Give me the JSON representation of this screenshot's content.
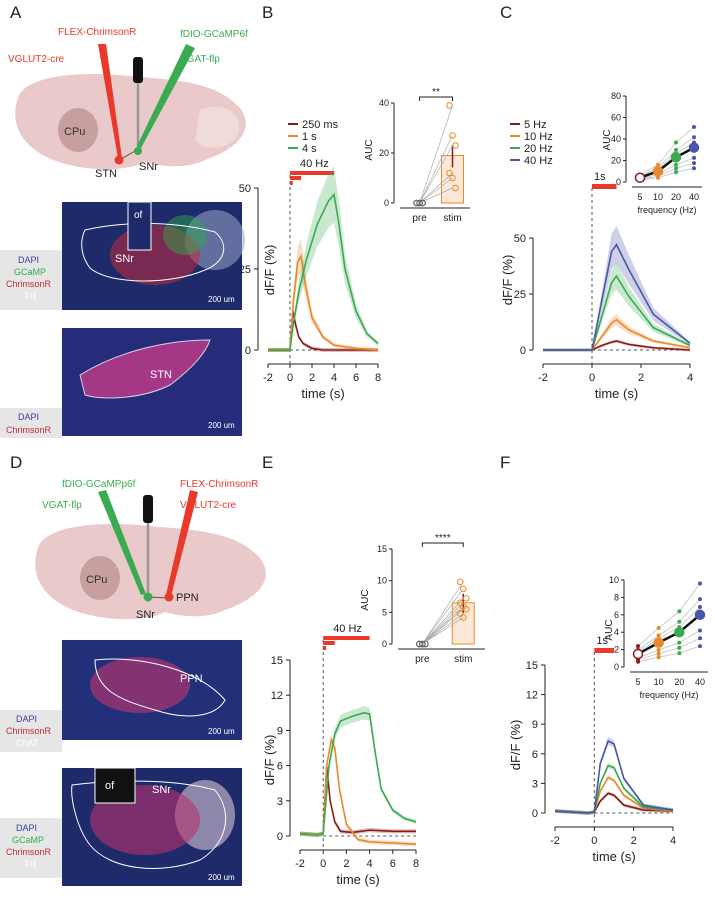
{
  "panel_labels": {
    "A": "A",
    "B": "B",
    "C": "C",
    "D": "D",
    "E": "E",
    "F": "F"
  },
  "colors": {
    "brain": "#e9c9c9",
    "striatum": "#c79f9f",
    "red": "#e8392a",
    "green": "#3bab52",
    "dark_red": "#8b1a1a",
    "orange": "#e8892b",
    "blue": "#4a57a8",
    "black": "#111111",
    "dapi": "#3b3fa0",
    "gcamp": "#2fb04a",
    "chrimson": "#c22a3a",
    "th_chat": "#bdbdbd"
  },
  "panel_a": {
    "vector_left": "FLEX-ChrimsonR",
    "cre_line": "VGLUT2-cre",
    "vector_right": "fDIO-GCaMP6f",
    "flp_line": "VGAT-flp",
    "region_striatum": "CPu",
    "region_stn": "STN",
    "region_snr": "SNr",
    "hist1": {
      "fiber": "of",
      "region": "SNr",
      "scale": "200 um",
      "legend": [
        "DAPI",
        "GCaMP",
        "ChrimsonR",
        "TH"
      ]
    },
    "hist2": {
      "region": "STN",
      "scale": "200 um",
      "legend": [
        "DAPI",
        "ChrimsonR"
      ]
    }
  },
  "panel_d": {
    "vector_left": "fDIO-GCaMPp6f",
    "flp_line": "VGAT-flp",
    "vector_right": "FLEX-ChrimsonR",
    "cre_line": "VGLUT2-cre",
    "region_striatum": "CPu",
    "region_ppn": "PPN",
    "region_snr": "SNr",
    "hist1": {
      "region": "PPN",
      "scale": "200 um",
      "legend": [
        "DAPI",
        "ChrimsonR",
        "ChAT"
      ]
    },
    "hist2": {
      "fiber": "of",
      "region": "SNr",
      "scale": "200 um",
      "legend": [
        "DAPI",
        "GCaMP",
        "ChrimsonR",
        "TH"
      ]
    }
  },
  "chart_data": [
    {
      "id": "B",
      "type": "line",
      "xlabel": "time (s)",
      "ylabel": "dF/F (%)",
      "xlim": [
        -2,
        8
      ],
      "ylim": [
        0,
        50
      ],
      "xticks": [
        "-2",
        "0",
        "2",
        "4",
        "6",
        "8"
      ],
      "yticks": [
        "0",
        "25",
        "50"
      ],
      "stim_label": "40 Hz",
      "legend": [
        "250 ms",
        "1 s",
        "4 s"
      ],
      "series": [
        {
          "name": "250 ms",
          "color": "#8b1a1a",
          "x": [
            -2,
            -0.5,
            0,
            0.25,
            0.5,
            0.8,
            1.2,
            2,
            3,
            5,
            8
          ],
          "y": [
            0,
            0,
            0,
            12,
            8,
            4,
            2,
            0.5,
            0,
            0,
            0
          ]
        },
        {
          "name": "1 s",
          "color": "#e8892b",
          "x": [
            -2,
            -0.5,
            0,
            0.3,
            0.7,
            1,
            1.4,
            2,
            3,
            4,
            6,
            8
          ],
          "y": [
            0,
            0,
            0,
            15,
            27,
            29,
            20,
            10,
            4,
            1.5,
            0.5,
            0
          ]
        },
        {
          "name": "4 s",
          "color": "#3bab52",
          "x": [
            -2,
            -0.5,
            0,
            0.3,
            0.8,
            1.5,
            2.5,
            3.5,
            4,
            4.4,
            5,
            6,
            7,
            8
          ],
          "y": [
            0,
            0,
            0,
            8,
            18,
            28,
            39,
            46,
            48,
            40,
            25,
            12,
            5,
            2
          ]
        }
      ],
      "inset": {
        "type": "bar",
        "ylabel": "AUC",
        "categories": [
          "pre",
          "stim"
        ],
        "values": [
          0,
          19
        ],
        "ylim": [
          0,
          40
        ],
        "yticks": [
          "0",
          "20",
          "40"
        ],
        "significance": "**",
        "pre_points": [
          0,
          0,
          0,
          0,
          0,
          0
        ],
        "stim_points": [
          39,
          27,
          23,
          12,
          10,
          6
        ]
      }
    },
    {
      "id": "C",
      "type": "line",
      "xlabel": "time (s)",
      "ylabel": "dF/F (%)",
      "xlim": [
        -2,
        4
      ],
      "ylim": [
        0,
        50
      ],
      "xticks": [
        "-2",
        "0",
        "2",
        "4"
      ],
      "yticks": [
        "0",
        "25",
        "50"
      ],
      "stim_label": "1s",
      "legend": [
        "5 Hz",
        "10 Hz",
        "20 Hz",
        "40 Hz"
      ],
      "series": [
        {
          "name": "5 Hz",
          "color": "#8b1a1a",
          "x": [
            -2,
            -0.3,
            0,
            0.4,
            0.8,
            1,
            1.5,
            2.5,
            4
          ],
          "y": [
            0,
            0,
            0,
            2,
            3.5,
            4,
            2.5,
            1,
            0
          ]
        },
        {
          "name": "10 Hz",
          "color": "#e8892b",
          "x": [
            -2,
            -0.3,
            0,
            0.4,
            0.8,
            1,
            1.5,
            2.5,
            4
          ],
          "y": [
            0,
            0,
            0,
            6,
            12,
            13.5,
            9,
            4,
            1
          ]
        },
        {
          "name": "20 Hz",
          "color": "#3bab52",
          "x": [
            -2,
            -0.3,
            0,
            0.4,
            0.8,
            1,
            1.5,
            2.5,
            4
          ],
          "y": [
            0,
            0,
            0,
            15,
            30,
            33,
            24,
            10,
            2
          ]
        },
        {
          "name": "40 Hz",
          "color": "#4a57a8",
          "x": [
            -2,
            -0.3,
            0,
            0.4,
            0.8,
            1,
            1.5,
            2.5,
            4
          ],
          "y": [
            0,
            0,
            0,
            22,
            44,
            47,
            36,
            16,
            3
          ]
        }
      ],
      "inset": {
        "type": "scatter",
        "ylabel": "AUC",
        "xlabel": "frequency (Hz)",
        "categories": [
          "5",
          "10",
          "20",
          "40"
        ],
        "ylim": [
          0,
          80
        ],
        "yticks": [
          "0",
          "20",
          "40",
          "60",
          "80"
        ],
        "means": [
          4,
          10,
          23,
          32
        ]
      }
    },
    {
      "id": "E",
      "type": "line",
      "xlabel": "time (s)",
      "ylabel": "dF/F (%)",
      "xlim": [
        -2,
        8
      ],
      "ylim": [
        0,
        15
      ],
      "xticks": [
        "-2",
        "0",
        "2",
        "4",
        "6",
        "8"
      ],
      "yticks": [
        "0",
        "3",
        "6",
        "9",
        "12",
        "15"
      ],
      "stim_label": "40 Hz",
      "series": [
        {
          "name": "250 ms",
          "color": "#8b1a1a",
          "x": [
            -2,
            -0.5,
            0,
            0.3,
            0.6,
            1,
            1.5,
            2.5,
            4,
            6,
            8
          ],
          "y": [
            0.2,
            0.1,
            0.2,
            6,
            3,
            1.2,
            0.4,
            0.3,
            0.5,
            0.4,
            0.4
          ]
        },
        {
          "name": "1 s",
          "color": "#e8892b",
          "x": [
            -2,
            -0.5,
            0,
            0.3,
            0.7,
            1,
            1.4,
            2,
            3,
            4,
            6,
            8
          ],
          "y": [
            0.2,
            0.1,
            0.2,
            6,
            8.2,
            7.5,
            4,
            1,
            -0.3,
            -0.5,
            -0.6,
            -0.7
          ]
        },
        {
          "name": "4 s",
          "color": "#3bab52",
          "x": [
            -2,
            -0.5,
            0,
            0.5,
            1,
            1.5,
            2.5,
            3.5,
            4,
            4.5,
            5,
            6,
            7,
            8
          ],
          "y": [
            0.2,
            0.1,
            0.2,
            6,
            8.7,
            9.8,
            10.2,
            10.5,
            10.4,
            7,
            4,
            2.2,
            1.5,
            1.2
          ]
        }
      ],
      "inset": {
        "type": "bar",
        "ylabel": "AUC",
        "categories": [
          "pre",
          "stim"
        ],
        "values": [
          0,
          6.5
        ],
        "ylim": [
          0,
          15
        ],
        "yticks": [
          "0",
          "5",
          "10",
          "15"
        ],
        "significance": "****",
        "pre_points": [
          0,
          0,
          0,
          0,
          0,
          0,
          0,
          0
        ],
        "stim_points": [
          9.8,
          8.7,
          7.2,
          6.5,
          5.9,
          5.5,
          4.8,
          4.2
        ]
      }
    },
    {
      "id": "F",
      "type": "line",
      "xlabel": "time (s)",
      "ylabel": "dF/F (%)",
      "xlim": [
        -2,
        4
      ],
      "ylim": [
        0,
        15
      ],
      "xticks": [
        "-2",
        "0",
        "2",
        "4"
      ],
      "yticks": [
        "0",
        "3",
        "6",
        "9",
        "12",
        "15"
      ],
      "stim_label": "1s",
      "series": [
        {
          "name": "5 Hz",
          "color": "#8b1a1a",
          "x": [
            -2,
            -0.3,
            0,
            0.3,
            0.7,
            1,
            1.5,
            2.5,
            4
          ],
          "y": [
            0.2,
            0,
            0.1,
            1.2,
            2,
            1.8,
            0.8,
            0.3,
            0.2
          ]
        },
        {
          "name": "10 Hz",
          "color": "#e8892b",
          "x": [
            -2,
            -0.3,
            0,
            0.3,
            0.7,
            1,
            1.5,
            2.5,
            4
          ],
          "y": [
            0.2,
            0,
            0.1,
            2.2,
            3.6,
            3.3,
            1.8,
            0.5,
            0.2
          ]
        },
        {
          "name": "20 Hz",
          "color": "#3bab52",
          "x": [
            -2,
            -0.3,
            0,
            0.3,
            0.7,
            1,
            1.5,
            2.5,
            4
          ],
          "y": [
            0.2,
            0,
            0.1,
            3,
            4.8,
            4.6,
            2.5,
            0.6,
            0.3
          ]
        },
        {
          "name": "40 Hz",
          "color": "#4a57a8",
          "x": [
            -2,
            -0.3,
            0,
            0.3,
            0.7,
            1,
            1.5,
            2.5,
            4
          ],
          "y": [
            0.2,
            0,
            0.1,
            5,
            7.3,
            7,
            3.5,
            0.8,
            0.3
          ]
        }
      ],
      "inset": {
        "type": "scatter",
        "ylabel": "AUC",
        "xlabel": "frequency (Hz)",
        "categories": [
          "5",
          "10",
          "20",
          "40"
        ],
        "ylim": [
          0,
          10
        ],
        "yticks": [
          "0",
          "2",
          "4",
          "6",
          "8",
          "10"
        ],
        "means": [
          1.5,
          2.8,
          4.0,
          6.0
        ]
      }
    }
  ]
}
